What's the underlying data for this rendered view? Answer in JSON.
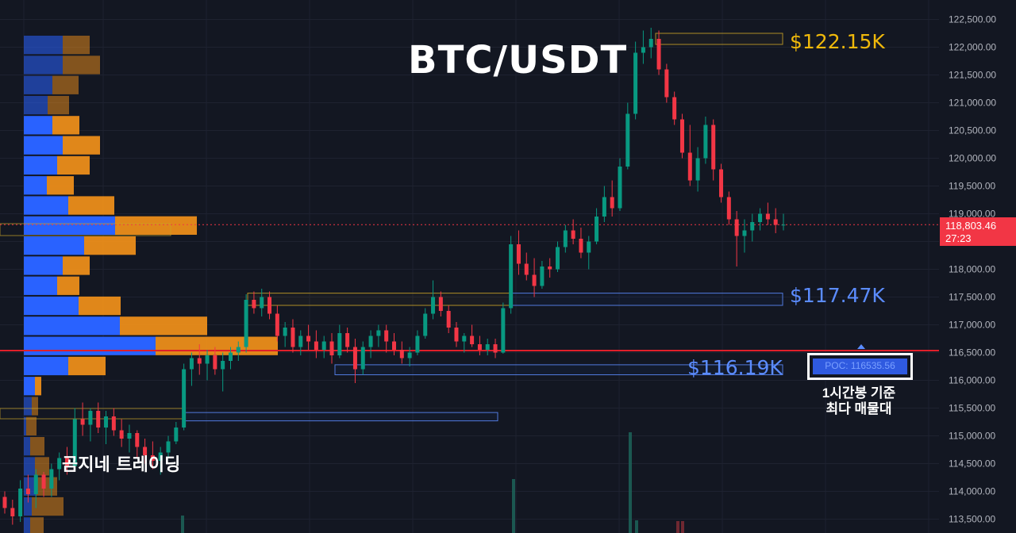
{
  "chart_title": "BTC/USDT",
  "watermark": "곰지네 트레이딩",
  "annotations": {
    "top_level": "$122.15K",
    "mid_level": "$117.47K",
    "low_level": "$116.19K",
    "poc_label": "POC: 116535.56",
    "poc_note_line1": "1시간봉 기준",
    "poc_note_line2": "최다 매물대"
  },
  "price_tag": {
    "price": "118,803.46",
    "countdown": "27:23"
  },
  "colors": {
    "background": "#131722",
    "up": "#089981",
    "down": "#f23645",
    "profile_buy": "#2962ff",
    "profile_sell": "#f7931a",
    "gold_text": "#f0b90b",
    "blue_text": "#5b8cff",
    "poc_line": "#e01f2a"
  },
  "chart_data": {
    "type": "candlestick",
    "symbol": "BTC/USDT",
    "timeframe": "1h",
    "y_axis": {
      "min": 113250,
      "max": 122850,
      "tick_labels": [
        "113,500.00",
        "114,000.00",
        "114,500.00",
        "115,000.00",
        "115,500.00",
        "116,000.00",
        "116,500.00",
        "117,000.00",
        "117,500.00",
        "118,000.00",
        "118,500.00",
        "119,000.00",
        "119,500.00",
        "120,000.00",
        "120,500.00",
        "121,000.00",
        "121,500.00",
        "122,000.00",
        "122,500.00"
      ]
    },
    "last_price": 118803.46,
    "poc_price": 116535.56,
    "levels": [
      {
        "label": "$122.15K",
        "from": 122050,
        "to": 122250
      },
      {
        "label": "$117.47K",
        "from": 117350,
        "to": 117570
      },
      {
        "label": "$116.19K",
        "from": 116100,
        "to": 116280
      },
      {
        "from": 115270,
        "to": 115420
      }
    ],
    "ohlc": [
      [
        113900,
        114000,
        113600,
        113700
      ],
      [
        113700,
        113850,
        113400,
        113550
      ],
      [
        113550,
        114200,
        113450,
        114050
      ],
      [
        114050,
        114300,
        113800,
        113950
      ],
      [
        113950,
        114400,
        113700,
        114300
      ],
      [
        114300,
        114350,
        113900,
        114050
      ],
      [
        114050,
        114500,
        113900,
        114400
      ],
      [
        114400,
        114700,
        114200,
        114600
      ],
      [
        114600,
        114800,
        114300,
        114450
      ],
      [
        114450,
        115500,
        114400,
        115300
      ],
      [
        115300,
        115600,
        115000,
        115200
      ],
      [
        115200,
        115500,
        114900,
        115450
      ],
      [
        115450,
        115600,
        115050,
        115150
      ],
      [
        115150,
        115450,
        114850,
        115350
      ],
      [
        115350,
        115500,
        115000,
        115100
      ],
      [
        115100,
        115300,
        114800,
        114950
      ],
      [
        114950,
        115200,
        114700,
        115050
      ],
      [
        115050,
        115100,
        114600,
        114800
      ],
      [
        114800,
        114950,
        114500,
        114650
      ],
      [
        114650,
        114900,
        114400,
        114550
      ],
      [
        114550,
        114800,
        114300,
        114700
      ],
      [
        114700,
        115000,
        114600,
        114900
      ],
      [
        114900,
        115250,
        114850,
        115150
      ],
      [
        115150,
        116300,
        115100,
        116200
      ],
      [
        116200,
        116500,
        115900,
        116400
      ],
      [
        116400,
        116650,
        116100,
        116300
      ],
      [
        116300,
        116550,
        116000,
        116450
      ],
      [
        116450,
        116600,
        116100,
        116200
      ],
      [
        116200,
        116500,
        115800,
        116350
      ],
      [
        116350,
        116600,
        116200,
        116500
      ],
      [
        116500,
        116700,
        116350,
        116600
      ],
      [
        116600,
        117550,
        116500,
        117450
      ],
      [
        117450,
        117600,
        117200,
        117300
      ],
      [
        117300,
        117650,
        117150,
        117500
      ],
      [
        117500,
        117600,
        117100,
        117200
      ],
      [
        117200,
        117350,
        116700,
        116800
      ],
      [
        116800,
        117050,
        116600,
        116950
      ],
      [
        116950,
        117100,
        116500,
        116600
      ],
      [
        116600,
        116900,
        116450,
        116800
      ],
      [
        116800,
        117000,
        116550,
        116700
      ],
      [
        116700,
        116900,
        116400,
        116550
      ],
      [
        116550,
        116800,
        116400,
        116700
      ],
      [
        116700,
        116850,
        116300,
        116450
      ],
      [
        116450,
        117000,
        116400,
        116850
      ],
      [
        116850,
        116950,
        116500,
        116600
      ],
      [
        116600,
        116750,
        115950,
        116200
      ],
      [
        116200,
        116700,
        116100,
        116600
      ],
      [
        116600,
        116900,
        116400,
        116800
      ],
      [
        116800,
        117000,
        116600,
        116900
      ],
      [
        116900,
        117000,
        116500,
        116700
      ],
      [
        116700,
        116850,
        116450,
        116550
      ],
      [
        116550,
        116700,
        116300,
        116400
      ],
      [
        116400,
        116600,
        116250,
        116500
      ],
      [
        116500,
        116900,
        116450,
        116800
      ],
      [
        116800,
        117300,
        116750,
        117200
      ],
      [
        117200,
        117800,
        117100,
        117500
      ],
      [
        117500,
        117600,
        117150,
        117250
      ],
      [
        117250,
        117350,
        116850,
        116950
      ],
      [
        116950,
        117050,
        116600,
        116700
      ],
      [
        116700,
        116850,
        116500,
        116800
      ],
      [
        116800,
        117000,
        116600,
        116650
      ],
      [
        116650,
        116800,
        116450,
        116550
      ],
      [
        116550,
        116750,
        116450,
        116650
      ],
      [
        116650,
        116750,
        116400,
        116500
      ],
      [
        116500,
        117400,
        116480,
        117300
      ],
      [
        117300,
        118600,
        117200,
        118450
      ],
      [
        118450,
        118700,
        117900,
        118100
      ],
      [
        118100,
        118300,
        117800,
        117900
      ],
      [
        117900,
        118200,
        117500,
        117700
      ],
      [
        117700,
        118150,
        117650,
        118050
      ],
      [
        118050,
        118200,
        117850,
        118000
      ],
      [
        118000,
        118500,
        117950,
        118400
      ],
      [
        118400,
        118800,
        118300,
        118700
      ],
      [
        118700,
        118900,
        118450,
        118550
      ],
      [
        118550,
        118750,
        118200,
        118300
      ],
      [
        118300,
        118600,
        118000,
        118500
      ],
      [
        118500,
        119100,
        118450,
        118950
      ],
      [
        118950,
        119500,
        118850,
        119300
      ],
      [
        119300,
        119600,
        118950,
        119100
      ],
      [
        119100,
        120000,
        119050,
        119850
      ],
      [
        119850,
        121000,
        119800,
        120800
      ],
      [
        120800,
        122100,
        120700,
        121900
      ],
      [
        121900,
        122300,
        121700,
        122000
      ],
      [
        122000,
        122350,
        121800,
        122150
      ],
      [
        122150,
        122300,
        121500,
        121600
      ],
      [
        121600,
        121700,
        121000,
        121100
      ],
      [
        121100,
        121200,
        120600,
        120700
      ],
      [
        120700,
        120800,
        120000,
        120100
      ],
      [
        120100,
        120600,
        119500,
        119600
      ],
      [
        119600,
        120200,
        119400,
        120000
      ],
      [
        120000,
        120750,
        119900,
        120600
      ],
      [
        120600,
        120700,
        119600,
        119800
      ],
      [
        119800,
        119900,
        119200,
        119300
      ],
      [
        119300,
        119400,
        118800,
        118900
      ],
      [
        118900,
        119050,
        118050,
        118600
      ],
      [
        118600,
        118900,
        118300,
        118700
      ],
      [
        118700,
        119000,
        118500,
        118850
      ],
      [
        118850,
        119100,
        118700,
        119000
      ],
      [
        119000,
        119200,
        118800,
        118900
      ],
      [
        118900,
        119100,
        118650,
        118800
      ],
      [
        118800,
        119000,
        118700,
        118803.46
      ]
    ]
  }
}
